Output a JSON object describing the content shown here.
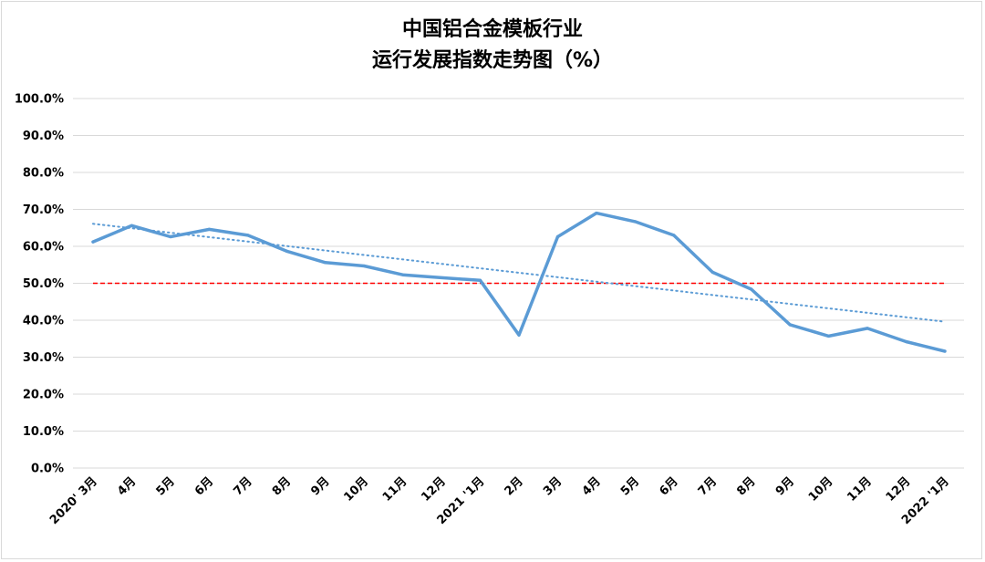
{
  "chart_data": {
    "type": "line",
    "title": "中国铝合金模板行业",
    "subtitle": "运行发展指数走势图（%）",
    "categories": [
      "2020' 3月",
      "4月",
      "5月",
      "6月",
      "7月",
      "8月",
      "9月",
      "10月",
      "11月",
      "12月",
      "2021 '1月",
      "2月",
      "3月",
      "4月",
      "5月",
      "6月",
      "7月",
      "8月",
      "9月",
      "10月",
      "11月",
      "12月",
      "2022 '1月"
    ],
    "series": [
      {
        "values": [
          61.2,
          65.6,
          62.6,
          64.6,
          63.0,
          58.7,
          55.6,
          54.7,
          52.3,
          51.5,
          50.8,
          36.0,
          62.6,
          69.0,
          66.7,
          63.0,
          53.0,
          48.4,
          38.8,
          35.7,
          37.8,
          34.2,
          31.6
        ],
        "color": "#5b9bd5",
        "line_width": 3.5
      }
    ],
    "trendline": {
      "style": "dotted",
      "color": "#5b9bd5",
      "start": 66.1,
      "end": 39.6
    },
    "reference_line": {
      "value": 50.0,
      "color": "#ff0000",
      "style": "dashed"
    },
    "ylim": [
      0,
      100
    ],
    "yticks": [
      "0.0%",
      "10.0%",
      "20.0%",
      "30.0%",
      "40.0%",
      "50.0%",
      "60.0%",
      "70.0%",
      "80.0%",
      "90.0%",
      "100.0%"
    ],
    "grid": true,
    "legend": "none"
  }
}
